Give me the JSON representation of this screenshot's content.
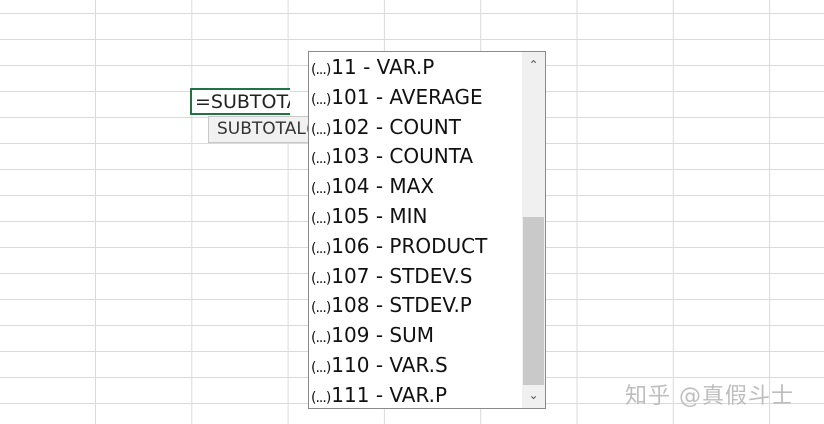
{
  "cell": {
    "formula": "=SUBTOTAL("
  },
  "tooltip": {
    "text": "SUBTOTAL("
  },
  "autocomplete": {
    "items": [
      {
        "icon": "(...)",
        "label": "11 - VAR.P"
      },
      {
        "icon": "(...)",
        "label": "101 - AVERAGE"
      },
      {
        "icon": "(...)",
        "label": "102 - COUNT"
      },
      {
        "icon": "(...)",
        "label": "103 - COUNTA"
      },
      {
        "icon": "(...)",
        "label": "104 - MAX"
      },
      {
        "icon": "(...)",
        "label": "105 - MIN"
      },
      {
        "icon": "(...)",
        "label": "106 - PRODUCT"
      },
      {
        "icon": "(...)",
        "label": "107 - STDEV.S"
      },
      {
        "icon": "(...)",
        "label": "108 - STDEV.P"
      },
      {
        "icon": "(...)",
        "label": "109 - SUM"
      },
      {
        "icon": "(...)",
        "label": "110 - VAR.S"
      },
      {
        "icon": "(...)",
        "label": "111 - VAR.P"
      }
    ],
    "scroll_up_icon": "chevron-up-icon",
    "scroll_down_icon": "chevron-down-icon"
  },
  "watermark": "知乎 @真假斗士",
  "colors": {
    "cell_border": "#217346"
  }
}
